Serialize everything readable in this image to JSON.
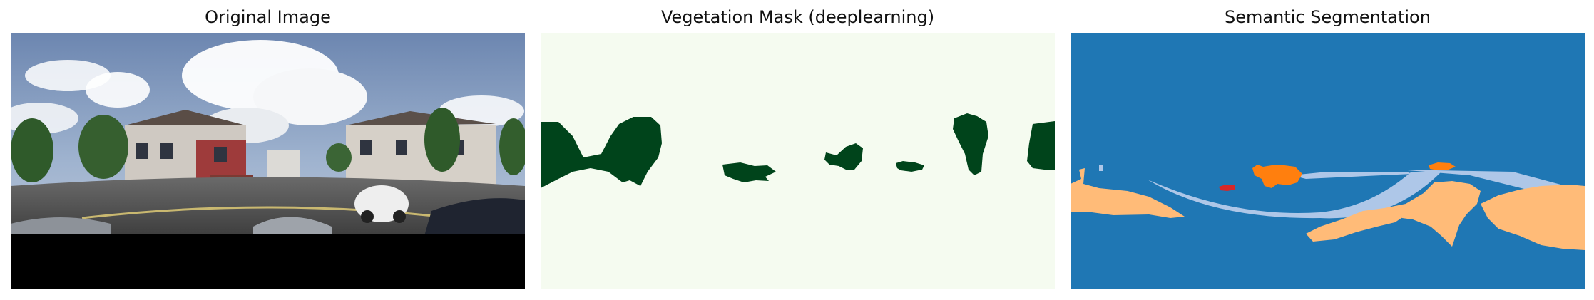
{
  "panels": [
    {
      "title": "Original Image"
    },
    {
      "title": "Vegetation Mask (deeplearning)"
    },
    {
      "title": "Semantic Segmentation"
    }
  ],
  "colors": {
    "mask_background": "#f5fbf0",
    "mask_vegetation": "#00441b",
    "seg_blue": "#1f77b4",
    "seg_light_blue": "#aec7e8",
    "seg_peach": "#ffbb78",
    "seg_orange": "#ff7f0e",
    "seg_red": "#d62728"
  }
}
